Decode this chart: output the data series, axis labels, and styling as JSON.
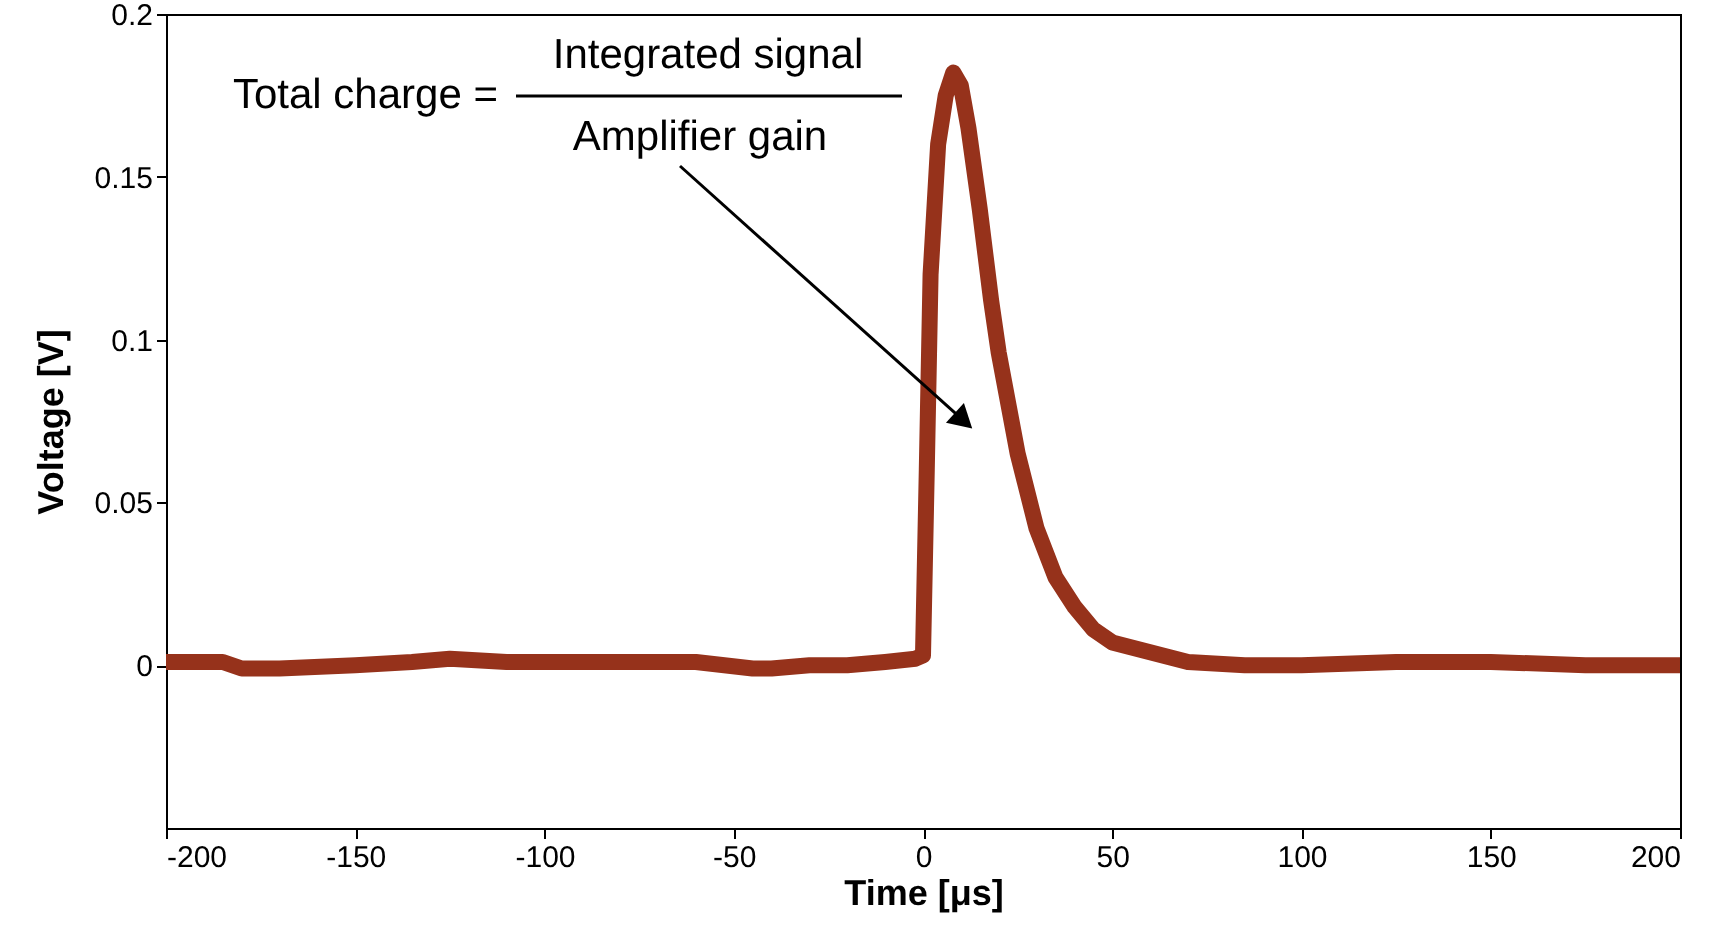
{
  "chart_data": {
    "type": "line",
    "xlabel": "Time [μs]",
    "ylabel": "Voltage [V]",
    "xlim": [
      -200,
      200
    ],
    "xticks": [
      -200,
      -150,
      -100,
      -50,
      0,
      50,
      100,
      150,
      200
    ],
    "ylim": [
      -0.05,
      0.2
    ],
    "yticks": [
      0,
      0.05,
      0.1,
      0.15,
      0.2
    ],
    "grid": false,
    "line_style": "solid",
    "marker": "none",
    "annotations": [
      "Total charge =",
      "Integrated signal",
      "Amplifier gain"
    ],
    "series": [
      {
        "color": "#96321b",
        "x": [
          -200,
          -185,
          -180,
          -170,
          -150,
          -135,
          -125,
          -110,
          -100,
          -80,
          -60,
          -45,
          -40,
          -30,
          -20,
          -10,
          -2,
          0,
          1,
          2,
          4,
          6,
          8,
          10,
          12,
          15,
          18,
          20,
          25,
          30,
          35,
          40,
          45,
          50,
          60,
          70,
          85,
          100,
          125,
          150,
          175,
          200
        ],
        "values": [
          0.001,
          0.001,
          -0.001,
          -0.001,
          0.0,
          0.001,
          0.002,
          0.001,
          0.001,
          0.001,
          0.001,
          -0.001,
          -0.001,
          0.0,
          0.0,
          0.001,
          0.002,
          0.003,
          0.06,
          0.12,
          0.16,
          0.175,
          0.182,
          0.178,
          0.165,
          0.14,
          0.112,
          0.096,
          0.065,
          0.042,
          0.027,
          0.018,
          0.011,
          0.007,
          0.004,
          0.001,
          0.0,
          0.0,
          0.001,
          0.001,
          0.0,
          0.0
        ]
      }
    ]
  }
}
